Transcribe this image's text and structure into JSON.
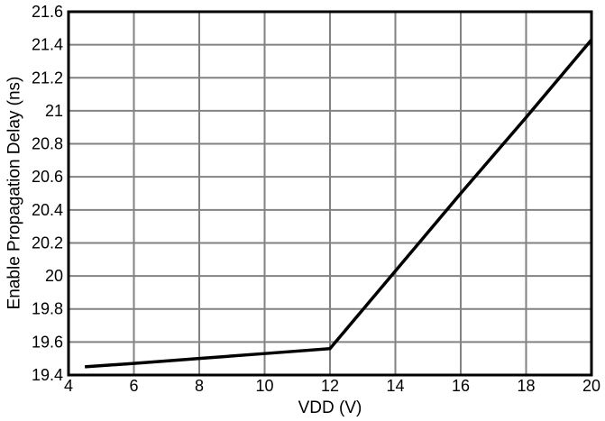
{
  "figure": {
    "background": "#ffffff",
    "text_color": "#000000"
  },
  "chart_data": {
    "type": "line",
    "title": "",
    "xlabel": "VDD (V)",
    "ylabel": "Enable Propagation Delay (ns)",
    "xlim": [
      4,
      20
    ],
    "ylim": [
      19.4,
      21.6
    ],
    "x_ticks": [
      4,
      6,
      8,
      10,
      12,
      14,
      16,
      18,
      20
    ],
    "y_ticks": [
      19.4,
      19.6,
      19.8,
      20,
      20.2,
      20.4,
      20.6,
      20.8,
      21,
      21.2,
      21.4,
      21.6
    ],
    "grid": true,
    "legend": false,
    "frame_color": "#000000",
    "grid_color": "#828282",
    "line_color": "#000000",
    "series": [
      {
        "name": "Enable Propagation Delay",
        "x": [
          4.5,
          6,
          8,
          10,
          12,
          14,
          16,
          18,
          20
        ],
        "y": [
          19.45,
          19.47,
          19.5,
          19.53,
          19.56,
          20.03,
          20.5,
          20.96,
          21.43
        ]
      }
    ]
  }
}
